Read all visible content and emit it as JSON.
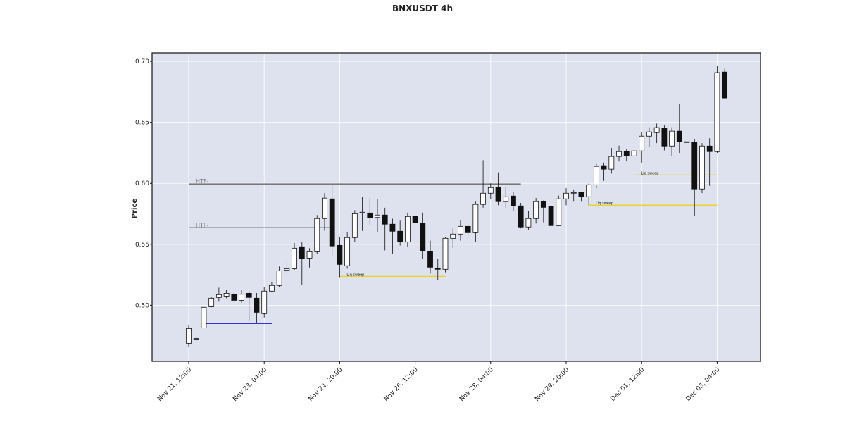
{
  "chart_data": {
    "type": "candlestick",
    "title": "BNXUSDT 4h",
    "y_label": "Price",
    "categories": [
      "Nov 21, 12:00",
      null,
      null,
      null,
      null,
      null,
      null,
      null,
      null,
      null,
      "Nov 23, 04:00",
      null,
      null,
      null,
      null,
      null,
      null,
      null,
      null,
      null,
      "Nov 24, 20:00",
      null,
      null,
      null,
      null,
      null,
      null,
      null,
      null,
      null,
      "Nov 26, 12:00",
      null,
      null,
      null,
      null,
      null,
      null,
      null,
      null,
      null,
      "Nov 28, 04:00",
      null,
      null,
      null,
      null,
      null,
      null,
      null,
      null,
      null,
      "Nov 29, 20:00",
      null,
      null,
      null,
      null,
      null,
      null,
      null,
      null,
      null,
      "Dec 01, 12:00",
      null,
      null,
      null,
      null,
      null,
      null,
      null,
      null,
      null,
      "Dec 03, 04:00",
      null
    ],
    "open": [
      0.4688,
      0.4728,
      0.4815,
      0.4988,
      0.5064,
      0.5075,
      0.5092,
      0.504,
      0.5098,
      0.5058,
      0.4931,
      0.5116,
      0.5162,
      0.5289,
      0.53,
      0.548,
      0.5387,
      0.5439,
      0.5711,
      0.5873,
      0.5491,
      0.5324,
      0.5555,
      0.5757,
      0.5757,
      0.572,
      0.574,
      0.5665,
      0.5607,
      0.552,
      0.5728,
      0.567,
      0.5439,
      0.5306,
      0.5295,
      0.5549,
      0.5584,
      0.5647,
      0.5595,
      0.5827,
      0.5919,
      0.5965,
      0.585,
      0.5896,
      0.5815,
      0.5642,
      0.5711,
      0.585,
      0.5809,
      0.5653,
      0.5873,
      0.5925,
      0.5925,
      0.589,
      0.5988,
      0.6145,
      0.6116,
      0.622,
      0.626,
      0.6225,
      0.6266,
      0.6387,
      0.6416,
      0.6451,
      0.6306,
      0.6428,
      0.6341,
      0.6335,
      0.5954,
      0.6306,
      0.626,
      0.6913
    ],
    "high": [
      0.4838,
      0.4745,
      0.515,
      0.507,
      0.5144,
      0.5127,
      0.511,
      0.5127,
      0.5115,
      0.51,
      0.515,
      0.519,
      0.5318,
      0.536,
      0.551,
      0.552,
      0.5468,
      0.574,
      0.592,
      0.599,
      0.556,
      0.56,
      0.578,
      0.589,
      0.588,
      0.587,
      0.58,
      0.571,
      0.57,
      0.576,
      0.575,
      0.576,
      0.553,
      0.538,
      0.556,
      0.563,
      0.57,
      0.568,
      0.585,
      0.619,
      0.6,
      0.609,
      0.597,
      0.593,
      0.584,
      0.577,
      0.588,
      0.586,
      0.587,
      0.59,
      0.596,
      0.595,
      0.593,
      0.6,
      0.616,
      0.617,
      0.629,
      0.631,
      0.628,
      0.631,
      0.642,
      0.646,
      0.649,
      0.648,
      0.646,
      0.665,
      0.636,
      0.636,
      0.633,
      0.637,
      0.696,
      0.694
    ],
    "low": [
      0.4659,
      0.4705,
      0.4815,
      0.4983,
      0.5035,
      0.5058,
      0.5035,
      0.502,
      0.4873,
      0.4855,
      0.49,
      0.511,
      0.515,
      0.525,
      0.529,
      0.517,
      0.531,
      0.542,
      0.561,
      0.54,
      0.523,
      0.53,
      0.552,
      0.561,
      0.566,
      0.56,
      0.545,
      0.542,
      0.549,
      0.548,
      0.55,
      0.538,
      0.526,
      0.521,
      0.527,
      0.547,
      0.553,
      0.555,
      0.552,
      0.58,
      0.587,
      0.582,
      0.58,
      0.577,
      0.563,
      0.562,
      0.567,
      0.568,
      0.564,
      0.565,
      0.582,
      0.585,
      0.585,
      0.582,
      0.596,
      0.602,
      0.608,
      0.618,
      0.618,
      0.617,
      0.617,
      0.63,
      0.633,
      0.627,
      0.622,
      0.625,
      0.62,
      0.573,
      0.592,
      0.598,
      0.625,
      0.669
    ],
    "close": [
      0.4809,
      0.4728,
      0.4983,
      0.5058,
      0.5087,
      0.5098,
      0.504,
      0.509,
      0.5064,
      0.4942,
      0.5116,
      0.5162,
      0.5283,
      0.53,
      0.5468,
      0.5382,
      0.5439,
      0.5711,
      0.5879,
      0.5486,
      0.5335,
      0.5555,
      0.5751,
      0.5763,
      0.5717,
      0.574,
      0.5665,
      0.5607,
      0.552,
      0.5728,
      0.5676,
      0.5445,
      0.5312,
      0.5295,
      0.5549,
      0.5584,
      0.5647,
      0.5595,
      0.5827,
      0.5919,
      0.5965,
      0.585,
      0.589,
      0.5815,
      0.5642,
      0.5711,
      0.585,
      0.5803,
      0.5653,
      0.5873,
      0.5919,
      0.5925,
      0.589,
      0.5988,
      0.6139,
      0.6116,
      0.622,
      0.626,
      0.6225,
      0.6266,
      0.6387,
      0.6422,
      0.6457,
      0.6306,
      0.6428,
      0.6341,
      0.6335,
      0.5954,
      0.6306,
      0.626,
      0.6908,
      0.67
    ],
    "up_color": "#ffffff",
    "down_color": "#111111",
    "levels": [
      {
        "value": 0.5995,
        "from": 0,
        "to": 44,
        "color": "#555555",
        "label": "HTF-"
      },
      {
        "value": 0.5636,
        "from": 0,
        "to": 19,
        "color": "#555555",
        "label": "HTF-"
      },
      {
        "value": 0.5237,
        "from": 20,
        "to": 34,
        "color": "#f0d000",
        "label": "Liq sweep"
      },
      {
        "value": 0.5821,
        "from": 53,
        "to": 70,
        "color": "#f0d000",
        "label": "Liq sweep"
      },
      {
        "value": 0.6069,
        "from": 59,
        "to": 70,
        "color": "#f0d000",
        "label": "Liq sweep"
      },
      {
        "value": 0.485,
        "from": 2,
        "to": 11,
        "color": "#1a1adc"
      }
    ],
    "ylim": [
      0.454,
      0.707
    ],
    "yticks": [
      {
        "value": 0.5,
        "label": "0.50"
      },
      {
        "value": 0.55,
        "label": "0.55"
      },
      {
        "value": 0.6,
        "label": "0.60"
      },
      {
        "value": 0.65,
        "label": "0.65"
      },
      {
        "value": 0.7,
        "label": "0.70"
      }
    ],
    "grid": true
  }
}
